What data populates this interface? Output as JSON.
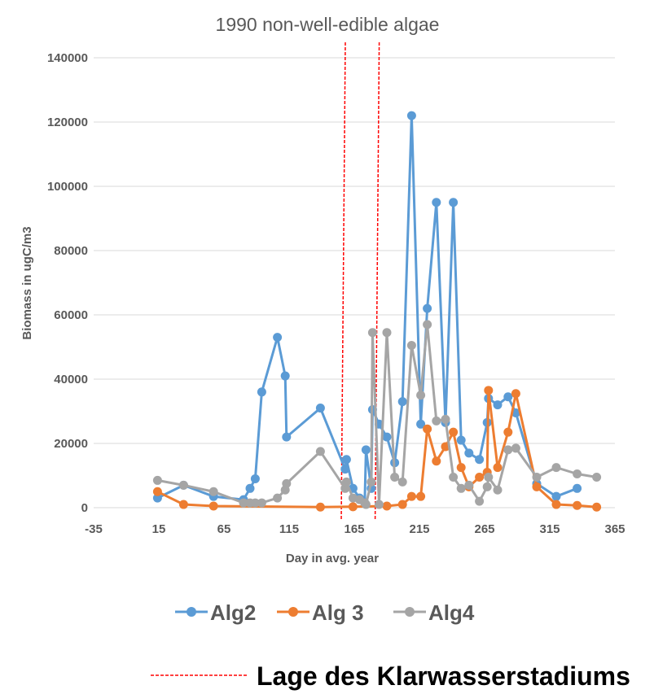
{
  "chart_data": {
    "type": "line",
    "title": "1990 non-well-edible algae",
    "xlabel": "Day in avg. year",
    "ylabel": "Biomass in ugC/m3",
    "xlim": [
      -35,
      365
    ],
    "ylim": [
      0,
      140000
    ],
    "x_ticks": [
      -35,
      15,
      65,
      115,
      165,
      215,
      265,
      315,
      365
    ],
    "y_ticks": [
      0,
      20000,
      40000,
      60000,
      80000,
      100000,
      120000,
      140000
    ],
    "grid": true,
    "legend_position": "bottom",
    "series": [
      {
        "name": "Alg2",
        "color": "#5b9bd5",
        "points": [
          [
            14,
            3000
          ],
          [
            34,
            7000
          ],
          [
            57,
            3500
          ],
          [
            80,
            2500
          ],
          [
            85,
            6000
          ],
          [
            89,
            9000
          ],
          [
            94,
            36000
          ],
          [
            106,
            53000
          ],
          [
            112,
            41000
          ],
          [
            113,
            22000
          ],
          [
            139,
            31000
          ],
          [
            158,
            12000
          ],
          [
            159,
            15000
          ],
          [
            164,
            6000
          ],
          [
            169,
            3000
          ],
          [
            173,
            1500
          ],
          [
            174,
            18000
          ],
          [
            178,
            6000
          ],
          [
            179,
            30500
          ],
          [
            184,
            26000
          ],
          [
            190,
            22000
          ],
          [
            196,
            14000
          ],
          [
            202,
            33000
          ],
          [
            209,
            122000
          ],
          [
            216,
            26000
          ],
          [
            221,
            62000
          ],
          [
            228,
            95000
          ],
          [
            235,
            26500
          ],
          [
            241,
            95000
          ],
          [
            247,
            21000
          ],
          [
            253,
            17000
          ],
          [
            261,
            15000
          ],
          [
            267,
            26500
          ],
          [
            268,
            34000
          ],
          [
            275,
            32000
          ],
          [
            283,
            34500
          ],
          [
            289,
            29500
          ],
          [
            305,
            7500
          ],
          [
            320,
            3500
          ],
          [
            336,
            6000
          ]
        ]
      },
      {
        "name": "Alg 3",
        "color": "#ed7d31",
        "points": [
          [
            14,
            5000
          ],
          [
            34,
            1000
          ],
          [
            57,
            500
          ],
          [
            139,
            200
          ],
          [
            164,
            300
          ],
          [
            190,
            500
          ],
          [
            202,
            1000
          ],
          [
            209,
            3500
          ],
          [
            216,
            3500
          ],
          [
            221,
            24500
          ],
          [
            228,
            14500
          ],
          [
            235,
            19000
          ],
          [
            241,
            23500
          ],
          [
            247,
            12500
          ],
          [
            253,
            6500
          ],
          [
            261,
            9500
          ],
          [
            267,
            11000
          ],
          [
            268,
            36500
          ],
          [
            275,
            12500
          ],
          [
            283,
            23500
          ],
          [
            289,
            35500
          ],
          [
            305,
            6500
          ],
          [
            320,
            1000
          ],
          [
            336,
            700
          ],
          [
            351,
            200
          ]
        ]
      },
      {
        "name": "Alg4",
        "color": "#a5a5a5",
        "points": [
          [
            14,
            8500
          ],
          [
            34,
            7000
          ],
          [
            57,
            5000
          ],
          [
            80,
            1500
          ],
          [
            85,
            1500
          ],
          [
            89,
            1500
          ],
          [
            94,
            1500
          ],
          [
            106,
            3000
          ],
          [
            112,
            5500
          ],
          [
            113,
            7500
          ],
          [
            139,
            17500
          ],
          [
            158,
            6000
          ],
          [
            159,
            8000
          ],
          [
            164,
            3000
          ],
          [
            169,
            2500
          ],
          [
            173,
            1500
          ],
          [
            174,
            1000
          ],
          [
            178,
            8000
          ],
          [
            179,
            54500
          ],
          [
            184,
            1000
          ],
          [
            190,
            54500
          ],
          [
            196,
            9500
          ],
          [
            202,
            8000
          ],
          [
            209,
            50500
          ],
          [
            216,
            35000
          ],
          [
            221,
            57000
          ],
          [
            228,
            27000
          ],
          [
            235,
            27500
          ],
          [
            241,
            9500
          ],
          [
            247,
            6000
          ],
          [
            253,
            7000
          ],
          [
            261,
            2000
          ],
          [
            267,
            6500
          ],
          [
            268,
            9500
          ],
          [
            275,
            5500
          ],
          [
            283,
            18000
          ],
          [
            289,
            18500
          ],
          [
            305,
            9500
          ],
          [
            320,
            12500
          ],
          [
            336,
            10500
          ],
          [
            351,
            9500
          ]
        ]
      }
    ],
    "reference_lines": {
      "x_values": [
        155,
        181
      ],
      "color": "#ff0000",
      "label": "Lage des Klarwasserstadiums"
    }
  }
}
